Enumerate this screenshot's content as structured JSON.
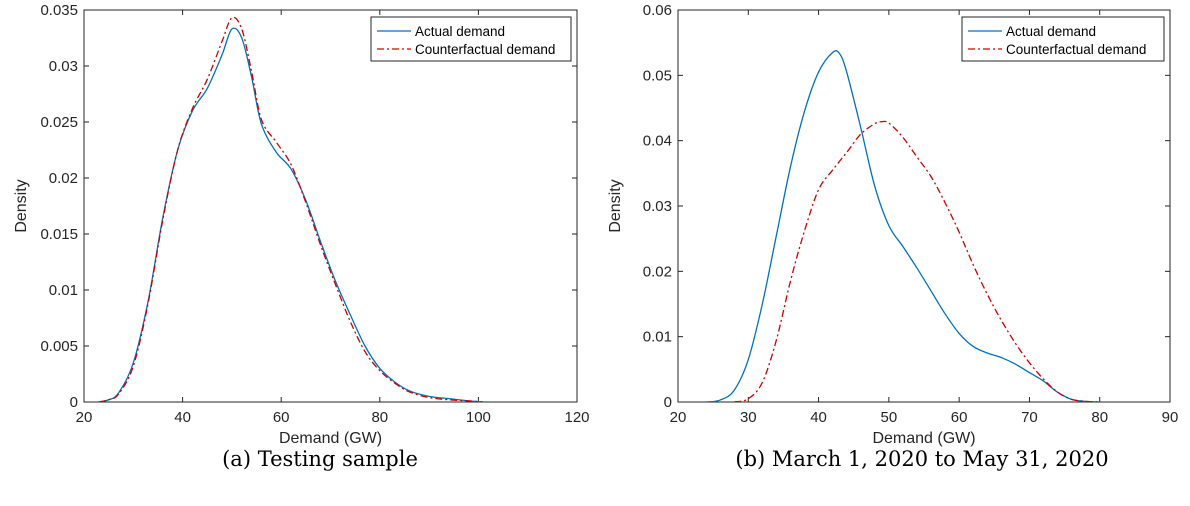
{
  "chart_data": [
    {
      "type": "line",
      "caption": "(a) Testing sample",
      "title": "",
      "xlabel": "Demand (GW)",
      "ylabel": "Density",
      "xlim": [
        20,
        120
      ],
      "ylim": [
        0,
        0.035
      ],
      "xticks": [
        20,
        40,
        60,
        80,
        100,
        120
      ],
      "yticks": [
        0,
        0.005,
        0.01,
        0.015,
        0.02,
        0.025,
        0.03,
        0.035
      ],
      "ytick_labels": [
        "0",
        "0.005",
        "0.01",
        "0.015",
        "0.02",
        "0.025",
        "0.03",
        "0.035"
      ],
      "grid": false,
      "legend_position": "top-right",
      "series": [
        {
          "name": "Actual demand",
          "color": "#0072BD",
          "style": "solid",
          "x": [
            23,
            25,
            27,
            30,
            33,
            36,
            39,
            42,
            45,
            48,
            50,
            52,
            54,
            56,
            59,
            62,
            65,
            68,
            71,
            74,
            77,
            80,
            83,
            86,
            90,
            94,
            98,
            101
          ],
          "y": [
            0,
            0.0002,
            0.0008,
            0.0035,
            0.009,
            0.0165,
            0.0225,
            0.026,
            0.028,
            0.031,
            0.0333,
            0.0325,
            0.029,
            0.0248,
            0.0223,
            0.0208,
            0.018,
            0.0143,
            0.0108,
            0.0078,
            0.005,
            0.003,
            0.0018,
            0.001,
            0.0005,
            0.0003,
            0.0001,
            0
          ]
        },
        {
          "name": "Counterfactual demand",
          "color": "#D00000",
          "style": "dashdot",
          "x": [
            23,
            25,
            27,
            30,
            33,
            36,
            39,
            42,
            45,
            48,
            50,
            52,
            54,
            56,
            59,
            62,
            65,
            68,
            71,
            74,
            77,
            80,
            83,
            86,
            90,
            94,
            98,
            101
          ],
          "y": [
            0,
            0.0002,
            0.0007,
            0.0032,
            0.0088,
            0.0163,
            0.0225,
            0.0262,
            0.0288,
            0.0322,
            0.0343,
            0.0333,
            0.0295,
            0.0252,
            0.0232,
            0.0212,
            0.0178,
            0.014,
            0.0105,
            0.0072,
            0.0045,
            0.0028,
            0.0017,
            0.0009,
            0.0004,
            0.0002,
            0.0001,
            0
          ]
        }
      ]
    },
    {
      "type": "line",
      "caption": "(b) March 1, 2020 to May 31, 2020",
      "title": "",
      "xlabel": "Demand (GW)",
      "ylabel": "Density",
      "xlim": [
        20,
        90
      ],
      "ylim": [
        0,
        0.06
      ],
      "xticks": [
        20,
        30,
        40,
        50,
        60,
        70,
        80,
        90
      ],
      "yticks": [
        0,
        0.01,
        0.02,
        0.03,
        0.04,
        0.05,
        0.06
      ],
      "ytick_labels": [
        "0",
        "0.01",
        "0.02",
        "0.03",
        "0.04",
        "0.05",
        "0.06"
      ],
      "grid": false,
      "legend_position": "top-right",
      "series": [
        {
          "name": "Actual demand",
          "color": "#0072BD",
          "style": "solid",
          "x": [
            24,
            26,
            28,
            30,
            32,
            34,
            36,
            38,
            40,
            42,
            43,
            44,
            46,
            48,
            50,
            52,
            54,
            56,
            58,
            60,
            62,
            64,
            66,
            68,
            70,
            72,
            74,
            76,
            78,
            80
          ],
          "y": [
            0,
            0.0003,
            0.0018,
            0.0065,
            0.015,
            0.0255,
            0.036,
            0.0445,
            0.0505,
            0.0535,
            0.0533,
            0.0505,
            0.042,
            0.033,
            0.027,
            0.0238,
            0.0205,
            0.017,
            0.0135,
            0.0105,
            0.0085,
            0.0075,
            0.0068,
            0.0058,
            0.0045,
            0.0032,
            0.0015,
            0.0004,
            0.0001,
            0
          ]
        },
        {
          "name": "Counterfactual demand",
          "color": "#D00000",
          "style": "dashdot",
          "x": [
            28,
            30,
            32,
            34,
            36,
            38,
            40,
            42,
            44,
            46,
            48,
            49,
            50,
            52,
            54,
            56,
            58,
            60,
            62,
            64,
            66,
            68,
            70,
            72,
            74,
            76,
            78,
            80
          ],
          "y": [
            0,
            0.0005,
            0.003,
            0.0095,
            0.0185,
            0.0262,
            0.0325,
            0.0355,
            0.0382,
            0.041,
            0.0426,
            0.0429,
            0.0427,
            0.0405,
            0.0375,
            0.0345,
            0.0305,
            0.026,
            0.021,
            0.0165,
            0.0125,
            0.009,
            0.006,
            0.0035,
            0.0015,
            0.0004,
            0.0001,
            0
          ]
        }
      ]
    }
  ]
}
